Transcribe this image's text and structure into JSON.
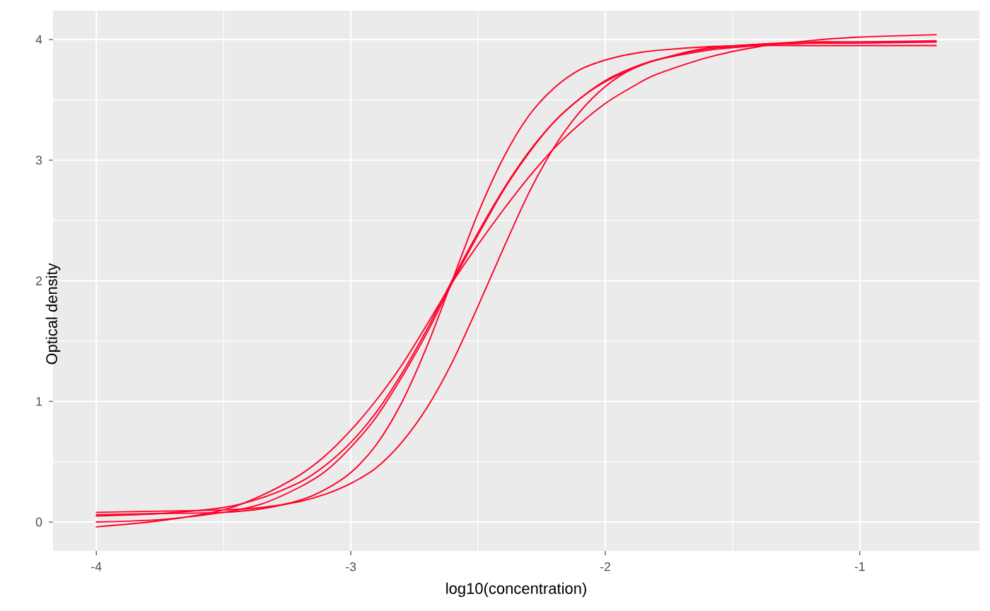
{
  "chart_data": {
    "type": "line",
    "xlabel": "log10(concentration)",
    "ylabel": "Optical density",
    "x": [
      -4,
      -3.75,
      -3.5,
      -3.35,
      -3.2,
      -3.1,
      -3.0,
      -2.9,
      -2.8,
      -2.7,
      -2.6,
      -2.5,
      -2.4,
      -2.3,
      -2.2,
      -2.1,
      -2.0,
      -1.9,
      -1.8,
      -1.6,
      -1.4,
      -1.2,
      -1.0,
      -0.7
    ],
    "series": [
      {
        "color": "#ff0028",
        "values": [
          -0.04,
          0.01,
          0.1,
          0.22,
          0.39,
          0.55,
          0.76,
          1.01,
          1.3,
          1.64,
          1.99,
          2.3,
          2.59,
          2.86,
          3.1,
          3.3,
          3.47,
          3.6,
          3.71,
          3.85,
          3.94,
          3.99,
          4.02,
          4.04
        ]
      },
      {
        "color": "#ff0028",
        "values": [
          0.0,
          0.02,
          0.08,
          0.15,
          0.29,
          0.42,
          0.62,
          0.87,
          1.2,
          1.57,
          1.99,
          2.38,
          2.75,
          3.06,
          3.32,
          3.51,
          3.66,
          3.76,
          3.83,
          3.92,
          3.96,
          3.98,
          3.98,
          3.99
        ]
      },
      {
        "color": "#ff0028",
        "values": [
          0.05,
          0.07,
          0.12,
          0.2,
          0.33,
          0.47,
          0.66,
          0.91,
          1.23,
          1.6,
          2.01,
          2.4,
          2.76,
          3.07,
          3.32,
          3.51,
          3.65,
          3.75,
          3.83,
          3.91,
          3.95,
          3.97,
          3.97,
          3.98
        ]
      },
      {
        "color": "#ff0028",
        "values": [
          0.06,
          0.07,
          0.08,
          0.11,
          0.18,
          0.27,
          0.41,
          0.64,
          0.99,
          1.46,
          2.01,
          2.56,
          3.02,
          3.37,
          3.6,
          3.75,
          3.83,
          3.88,
          3.91,
          3.94,
          3.95,
          3.95,
          3.95,
          3.95
        ]
      },
      {
        "color": "#ff0028",
        "values": [
          0.08,
          0.09,
          0.1,
          0.12,
          0.17,
          0.23,
          0.32,
          0.45,
          0.66,
          0.95,
          1.33,
          1.79,
          2.27,
          2.73,
          3.11,
          3.4,
          3.61,
          3.75,
          3.83,
          3.93,
          3.96,
          3.97,
          3.98,
          3.98
        ]
      }
    ],
    "xlim": [
      -4.17,
      -0.53
    ],
    "ylim": [
      -0.24,
      4.24
    ],
    "xticks": [
      -4,
      -3,
      -2,
      -1
    ],
    "yticks": [
      0,
      1,
      2,
      3,
      4
    ],
    "grid": true
  }
}
